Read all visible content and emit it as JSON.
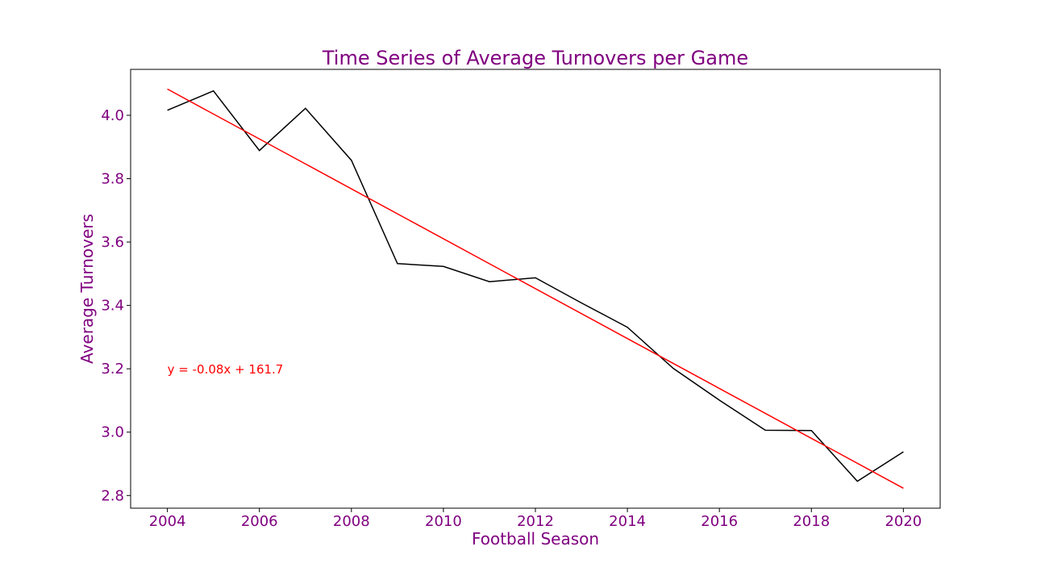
{
  "chart_data": {
    "type": "line",
    "title": "Time Series of Average Turnovers per Game",
    "xlabel": "Football Season",
    "ylabel": "Average Turnovers",
    "xlim": [
      2003.2,
      2020.8
    ],
    "ylim": [
      2.76,
      4.145
    ],
    "x_ticks": [
      2004,
      2006,
      2008,
      2010,
      2012,
      2014,
      2016,
      2018,
      2020
    ],
    "x_tick_labels": [
      "2004",
      "2006",
      "2008",
      "2010",
      "2012",
      "2014",
      "2016",
      "2018",
      "2020"
    ],
    "y_ticks": [
      2.8,
      3.0,
      3.2,
      3.4,
      3.6,
      3.8,
      4.0
    ],
    "y_tick_labels": [
      "2.8",
      "3.0",
      "3.2",
      "3.4",
      "3.6",
      "3.8",
      "4.0"
    ],
    "grid": false,
    "series": [
      {
        "x": [
          2004,
          2005,
          2006,
          2007,
          2008,
          2009,
          2010,
          2011,
          2012,
          2013,
          2014,
          2015,
          2016,
          2017,
          2018,
          2019,
          2020
        ],
        "values": [
          4.016,
          4.077,
          3.889,
          4.022,
          3.858,
          3.532,
          3.523,
          3.475,
          3.487,
          3.408,
          3.331,
          3.201,
          3.101,
          3.006,
          3.005,
          2.845,
          2.938
        ],
        "color": "#000000"
      },
      {
        "x": [
          2004,
          2020
        ],
        "values": [
          4.083,
          2.823
        ],
        "color": "#ff0000"
      }
    ],
    "annotations": [
      {
        "text": "y = -0.08x + 161.7",
        "x": 2004,
        "y": 3.2,
        "color": "#ff0000"
      }
    ],
    "colors": {
      "text": "#800080",
      "frame": "#000000"
    }
  }
}
